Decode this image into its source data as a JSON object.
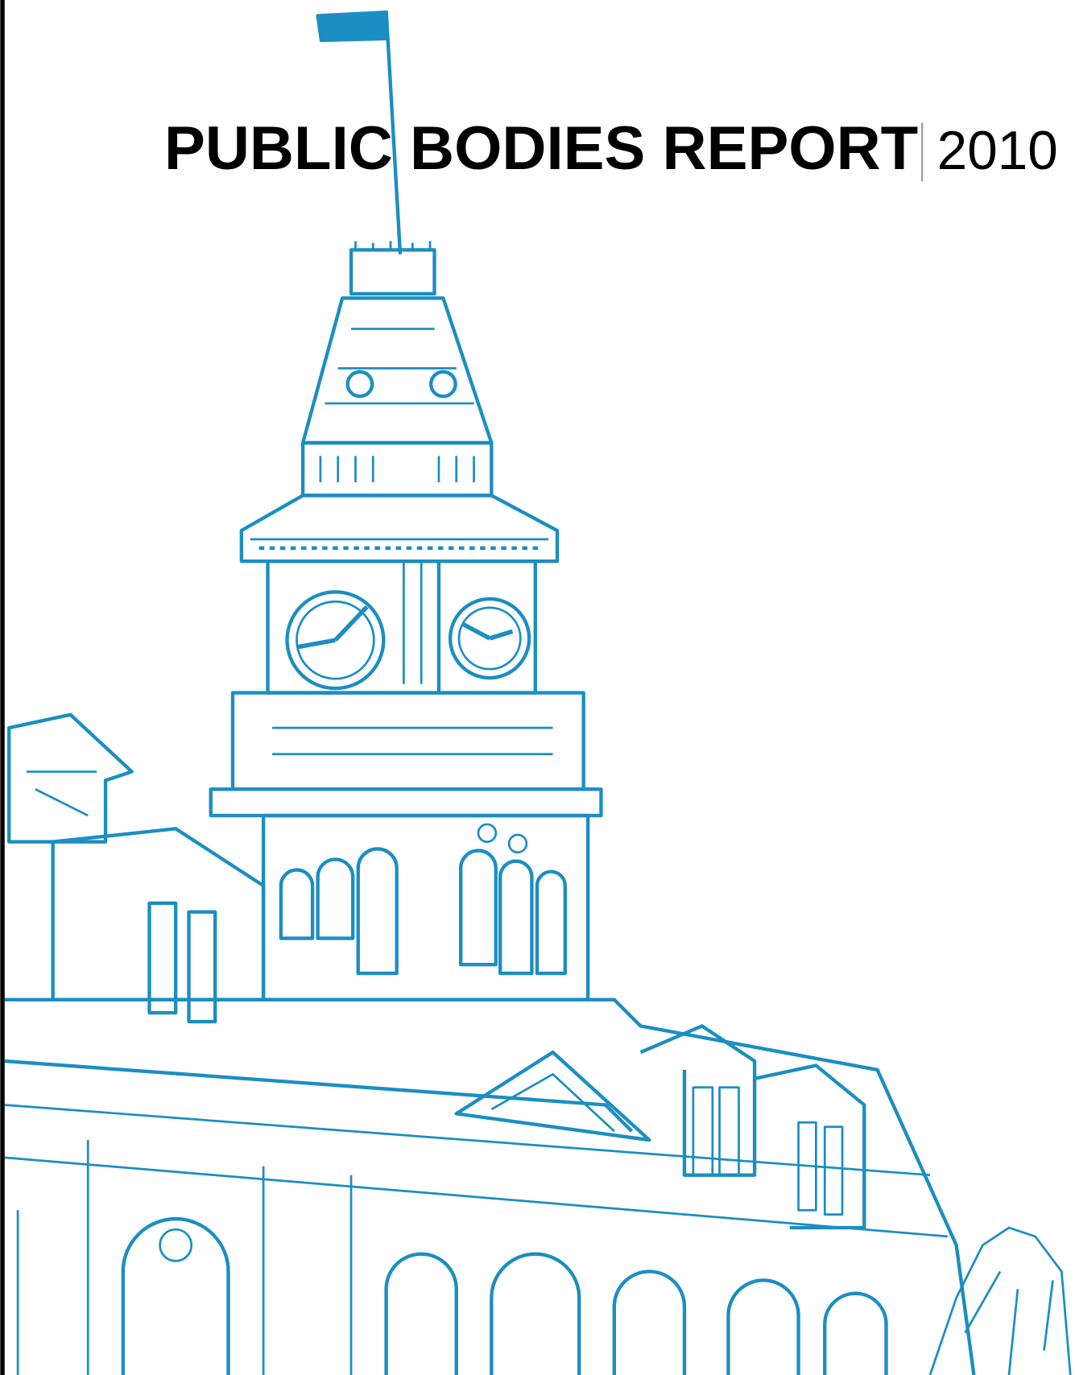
{
  "document": {
    "title": "PUBLIC BODIES REPORT",
    "year": "2010"
  }
}
